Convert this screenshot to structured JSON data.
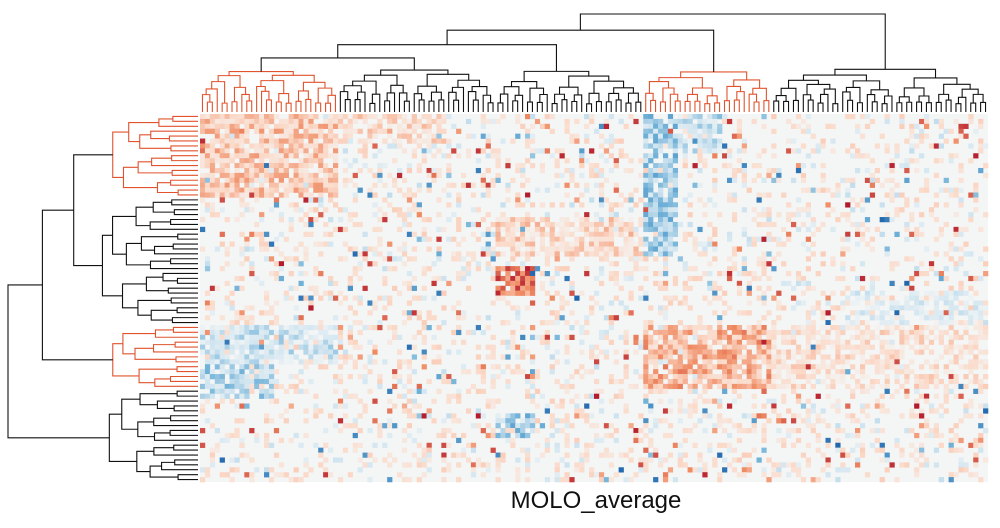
{
  "chart_data": {
    "type": "heatmap",
    "title": "",
    "xlabel": "MOLO_average",
    "ylabel": "",
    "n_columns": 160,
    "n_rows": 75,
    "value_range": [
      -1,
      1
    ],
    "colors": {
      "negative_strong": "#2166ac",
      "negative_mid": "#6baed6",
      "negative_light": "#d1e5f0",
      "neutral": "#f4f6f6",
      "positive_light": "#fbd9c8",
      "positive_mid": "#ef8a62",
      "positive_strong": "#b2182b",
      "dendrogram_highlight": "#e0532e",
      "dendrogram_default": "#111111"
    },
    "column_clusters": [
      {
        "name": "col-cluster-1",
        "start": 0,
        "end": 28,
        "highlighted": true
      },
      {
        "name": "col-cluster-2",
        "start": 28,
        "end": 60,
        "highlighted": false
      },
      {
        "name": "col-cluster-3",
        "start": 60,
        "end": 90,
        "highlighted": false
      },
      {
        "name": "col-cluster-4",
        "start": 90,
        "end": 116,
        "highlighted": true
      },
      {
        "name": "col-cluster-5",
        "start": 116,
        "end": 160,
        "highlighted": false
      }
    ],
    "row_clusters": [
      {
        "name": "row-cluster-1",
        "start": 0,
        "end": 17,
        "highlighted": true
      },
      {
        "name": "row-cluster-2",
        "start": 17,
        "end": 43,
        "highlighted": false
      },
      {
        "name": "row-cluster-3",
        "start": 43,
        "end": 56,
        "highlighted": true
      },
      {
        "name": "row-cluster-4",
        "start": 56,
        "end": 75,
        "highlighted": false
      }
    ],
    "blocks": [
      {
        "rows": [
          0,
          17
        ],
        "cols": [
          0,
          28
        ],
        "value": 0.4
      },
      {
        "rows": [
          0,
          6
        ],
        "cols": [
          28,
          50
        ],
        "value": 0.25
      },
      {
        "rows": [
          0,
          29
        ],
        "cols": [
          90,
          97
        ],
        "value": -0.5
      },
      {
        "rows": [
          0,
          8
        ],
        "cols": [
          97,
          106
        ],
        "value": -0.3
      },
      {
        "rows": [
          21,
          29
        ],
        "cols": [
          60,
          90
        ],
        "value": 0.3
      },
      {
        "rows": [
          31,
          37
        ],
        "cols": [
          60,
          68
        ],
        "value": 0.75
      },
      {
        "rows": [
          43,
          56
        ],
        "cols": [
          90,
          116
        ],
        "value": 0.5
      },
      {
        "rows": [
          43,
          56
        ],
        "cols": [
          116,
          160
        ],
        "value": 0.2
      },
      {
        "rows": [
          43,
          51
        ],
        "cols": [
          0,
          28
        ],
        "value": -0.3
      },
      {
        "rows": [
          51,
          58
        ],
        "cols": [
          0,
          15
        ],
        "value": -0.45
      },
      {
        "rows": [
          61,
          66
        ],
        "cols": [
          60,
          68
        ],
        "value": -0.55
      },
      {
        "rows": [
          36,
          43
        ],
        "cols": [
          130,
          160
        ],
        "value": -0.15
      }
    ]
  }
}
